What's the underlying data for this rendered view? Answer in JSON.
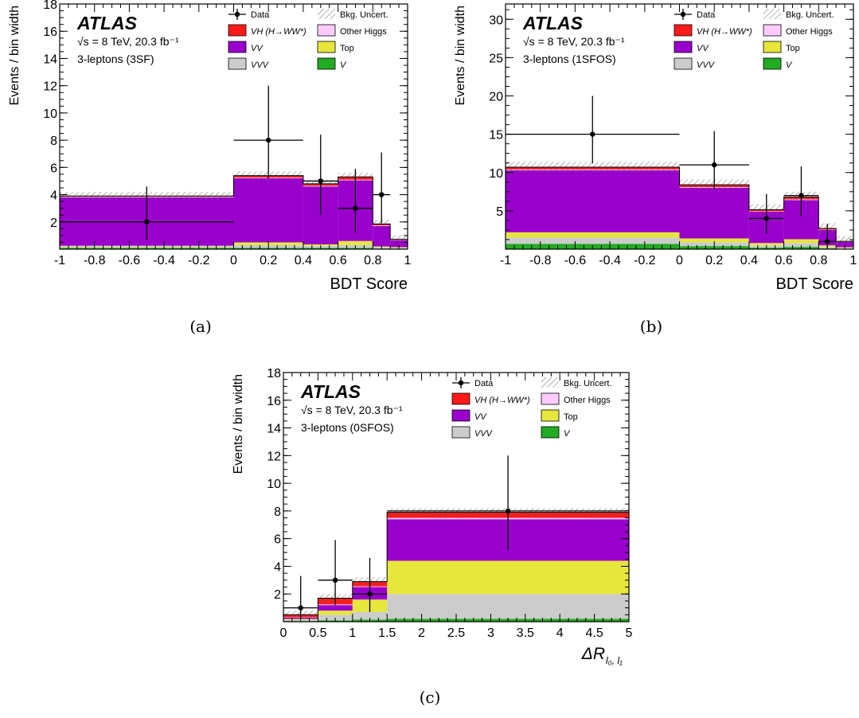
{
  "captions": [
    "(a)",
    "(b)",
    "(c)"
  ],
  "legend": {
    "data": "Data",
    "bkg": "Bkg. Uncert.",
    "vh": "VH (H→WW*)",
    "other_higgs": "Other Higgs",
    "vv": "VV",
    "top": "Top",
    "vvv": "VVV",
    "v": "V"
  },
  "colors": {
    "vh": "#ff1a1a",
    "other_higgs": "#ffccff",
    "vv": "#9900cc",
    "top": "#e6e63c",
    "vvv": "#cccccc",
    "v": "#22aa22"
  },
  "chart_data": [
    {
      "type": "bar",
      "stacked": true,
      "atlas_label": "ATLAS",
      "energy_label": "√s = 8 TeV, 20.3 fb⁻¹",
      "region_label": "3-leptons (3SF)",
      "xlabel": "BDT Score",
      "ylabel": "Events / bin width",
      "xlim": [
        -1,
        1
      ],
      "ylim": [
        0,
        18
      ],
      "xticks": [
        -1,
        -0.8,
        -0.6,
        -0.4,
        -0.2,
        0,
        0.2,
        0.4,
        0.6,
        0.8,
        1
      ],
      "xtick_labels": [
        "-1",
        "-0.8",
        "-0.6",
        "-0.4",
        "-0.2",
        "0",
        "0.2",
        "0.4",
        "0.6",
        "0.8",
        "1"
      ],
      "yticks": [
        2,
        4,
        6,
        8,
        10,
        12,
        14,
        16,
        18
      ],
      "ytick_labels": [
        "2",
        "4",
        "6",
        "8",
        "10",
        "12",
        "14",
        "16",
        "18"
      ],
      "bin_edges": [
        -1,
        0,
        0.4,
        0.6,
        0.8,
        0.9,
        1
      ],
      "series": [
        {
          "key": "v",
          "values": [
            0.1,
            0.1,
            0.1,
            0.1,
            0.05,
            0.05
          ]
        },
        {
          "key": "vvv",
          "values": [
            0.1,
            0.2,
            0.15,
            0.2,
            0.1,
            0.05
          ]
        },
        {
          "key": "top",
          "values": [
            0.05,
            0.2,
            0.1,
            0.3,
            0.05,
            0.05
          ]
        },
        {
          "key": "vv",
          "values": [
            3.55,
            4.7,
            4.25,
            4.45,
            1.5,
            0.5
          ]
        },
        {
          "key": "other_higgs",
          "values": [
            0.05,
            0.05,
            0.05,
            0.05,
            0.05,
            0.02
          ]
        },
        {
          "key": "vh",
          "values": [
            0.05,
            0.15,
            0.15,
            0.2,
            0.1,
            0.05
          ]
        }
      ],
      "uncertainty": 0.3,
      "data_points": [
        {
          "x": -0.5,
          "xerr": 0.5,
          "y": 2,
          "ylo": 0.7,
          "yhi": 4.6
        },
        {
          "x": 0.2,
          "xerr": 0.2,
          "y": 8,
          "ylo": 5.2,
          "yhi": 12
        },
        {
          "x": 0.5,
          "xerr": 0.1,
          "y": 5,
          "ylo": 2.5,
          "yhi": 8.4
        },
        {
          "x": 0.7,
          "xerr": 0.1,
          "y": 3,
          "ylo": 1.2,
          "yhi": 5.9
        },
        {
          "x": 0.85,
          "xerr": 0.05,
          "y": 4,
          "ylo": 1.9,
          "yhi": 7.1
        }
      ]
    },
    {
      "type": "bar",
      "stacked": true,
      "atlas_label": "ATLAS",
      "energy_label": "√s = 8 TeV, 20.3 fb⁻¹",
      "region_label": "3-leptons (1SFOS)",
      "xlabel": "BDT Score",
      "ylabel": "Events / bin width",
      "xlim": [
        -1,
        1
      ],
      "ylim": [
        0,
        32
      ],
      "xticks": [
        -1,
        -0.8,
        -0.6,
        -0.4,
        -0.2,
        0,
        0.2,
        0.4,
        0.6,
        0.8,
        1
      ],
      "xtick_labels": [
        "-1",
        "-0.8",
        "-0.6",
        "-0.4",
        "-0.2",
        "0",
        "0.2",
        "0.4",
        "0.6",
        "0.8",
        "1"
      ],
      "yticks": [
        5,
        10,
        15,
        20,
        25,
        30
      ],
      "ytick_labels": [
        "5",
        "10",
        "15",
        "20",
        "25",
        "30"
      ],
      "bin_edges": [
        -1,
        0,
        0.4,
        0.6,
        0.8,
        0.9,
        1
      ],
      "series": [
        {
          "key": "v",
          "values": [
            0.7,
            0.4,
            0.2,
            0.3,
            0.1,
            0.05
          ]
        },
        {
          "key": "vvv",
          "values": [
            0.8,
            0.5,
            0.3,
            0.5,
            0.2,
            0.1
          ]
        },
        {
          "key": "top",
          "values": [
            0.7,
            0.5,
            0.3,
            0.5,
            0.2,
            0.1
          ]
        },
        {
          "key": "vv",
          "values": [
            8.1,
            6.6,
            4.1,
            5.1,
            2.0,
            0.7
          ]
        },
        {
          "key": "other_higgs",
          "values": [
            0.1,
            0.1,
            0.05,
            0.1,
            0.05,
            0.02
          ]
        },
        {
          "key": "vh",
          "values": [
            0.3,
            0.3,
            0.2,
            0.3,
            0.15,
            0.05
          ]
        }
      ],
      "uncertainty": 0.7,
      "data_points": [
        {
          "x": -0.5,
          "xerr": 0.5,
          "y": 15,
          "ylo": 11.2,
          "yhi": 20
        },
        {
          "x": 0.2,
          "xerr": 0.2,
          "y": 11,
          "ylo": 7.8,
          "yhi": 15.4
        },
        {
          "x": 0.5,
          "xerr": 0.1,
          "y": 4,
          "ylo": 2.0,
          "yhi": 7.2
        },
        {
          "x": 0.7,
          "xerr": 0.1,
          "y": 7,
          "ylo": 4.3,
          "yhi": 10.8
        },
        {
          "x": 0.85,
          "xerr": 0.05,
          "y": 1,
          "ylo": 0.2,
          "yhi": 3.3
        }
      ]
    },
    {
      "type": "bar",
      "stacked": true,
      "atlas_label": "ATLAS",
      "energy_label": "√s = 8 TeV, 20.3 fb⁻¹",
      "region_label": "3-leptons (0SFOS)",
      "xlabel": "ΔR",
      "xlabel_sub": "l₀, l₁",
      "ylabel": "Events / bin width",
      "xlim": [
        0,
        5
      ],
      "ylim": [
        0,
        18
      ],
      "xticks": [
        0,
        0.5,
        1,
        1.5,
        2,
        2.5,
        3,
        3.5,
        4,
        4.5,
        5
      ],
      "xtick_labels": [
        "0",
        "0.5",
        "1",
        "1.5",
        "2",
        "2.5",
        "3",
        "3.5",
        "4",
        "4.5",
        "5"
      ],
      "yticks": [
        2,
        4,
        6,
        8,
        10,
        12,
        14,
        16,
        18
      ],
      "ytick_labels": [
        "2",
        "4",
        "6",
        "8",
        "10",
        "12",
        "14",
        "16",
        "18"
      ],
      "bin_edges": [
        0,
        0.5,
        1,
        1.5,
        5
      ],
      "series": [
        {
          "key": "v",
          "values": [
            0.05,
            0.1,
            0.15,
            0.2
          ]
        },
        {
          "key": "vvv",
          "values": [
            0.1,
            0.4,
            0.55,
            1.8
          ]
        },
        {
          "key": "top",
          "values": [
            0.05,
            0.3,
            0.9,
            2.4
          ]
        },
        {
          "key": "vv",
          "values": [
            0.1,
            0.4,
            0.9,
            3.0
          ]
        },
        {
          "key": "other_higgs",
          "values": [
            0.02,
            0.05,
            0.05,
            0.1
          ]
        },
        {
          "key": "vh",
          "values": [
            0.18,
            0.45,
            0.35,
            0.4
          ]
        }
      ],
      "uncertainty": 0.3,
      "data_points": [
        {
          "x": 0.25,
          "xerr": 0.25,
          "y": 1,
          "ylo": 0.2,
          "yhi": 3.3
        },
        {
          "x": 0.75,
          "xerr": 0.25,
          "y": 3,
          "ylo": 1.2,
          "yhi": 5.9
        },
        {
          "x": 1.25,
          "xerr": 0.25,
          "y": 2,
          "ylo": 0.7,
          "yhi": 4.6
        },
        {
          "x": 3.25,
          "xerr": 1.75,
          "y": 8,
          "ylo": 5.2,
          "yhi": 12
        }
      ]
    }
  ]
}
